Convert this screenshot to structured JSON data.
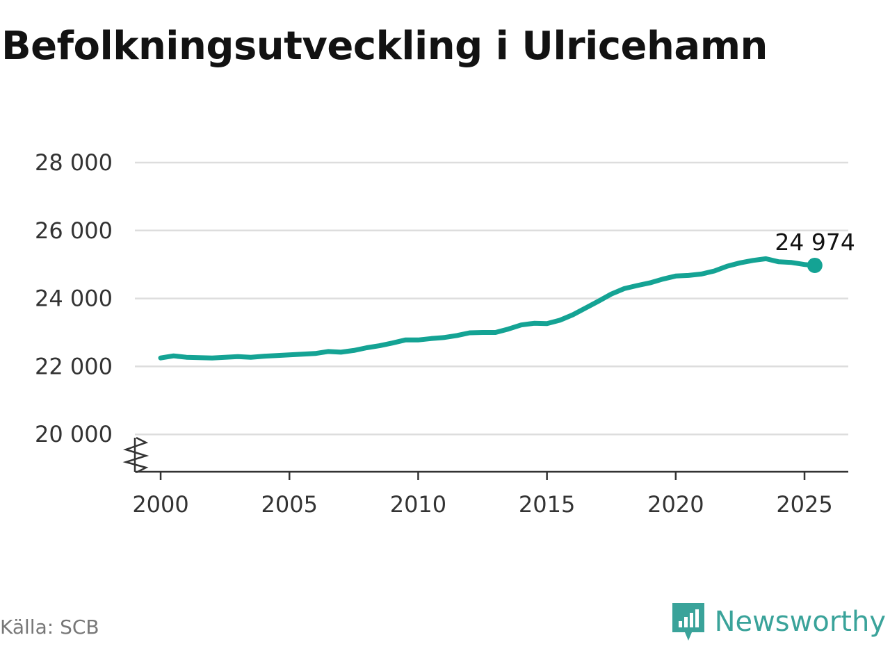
{
  "title": "Befolkningsutveckling i Ulricehamn",
  "source": "Källa: SCB",
  "brand": {
    "name": "Newsworthy",
    "icon": "newsworthy-logo-icon",
    "color": "#3aa39a"
  },
  "chart_data": {
    "type": "line",
    "title": "Befolkningsutveckling i Ulricehamn",
    "xlabel": "",
    "ylabel": "",
    "xlim": [
      1999,
      2026.7
    ],
    "ylim": [
      18900,
      28000
    ],
    "y_axis_break": true,
    "grid": true,
    "x_ticks": [
      2000,
      2005,
      2010,
      2015,
      2020,
      2025
    ],
    "y_ticks": [
      20000,
      22000,
      24000,
      26000,
      28000
    ],
    "x_tick_labels": [
      "2000",
      "2005",
      "2010",
      "2015",
      "2020",
      "2025"
    ],
    "y_tick_labels": [
      "20 000",
      "22 000",
      "24 000",
      "26 000",
      "28 000"
    ],
    "line_color": "#14a394",
    "end_label": "24 974",
    "series": [
      {
        "x": [
          2000.0,
          2000.5,
          2001.0,
          2001.5,
          2002.0,
          2002.5,
          2003.0,
          2003.5,
          2004.0,
          2004.5,
          2005.0,
          2005.5,
          2006.0,
          2006.5,
          2007.0,
          2007.5,
          2008.0,
          2008.5,
          2009.0,
          2009.5,
          2010.0,
          2010.5,
          2011.0,
          2011.5,
          2012.0,
          2012.5,
          2013.0,
          2013.5,
          2014.0,
          2014.5,
          2015.0,
          2015.5,
          2016.0,
          2016.5,
          2017.0,
          2017.5,
          2018.0,
          2018.5,
          2019.0,
          2019.5,
          2020.0,
          2020.5,
          2021.0,
          2021.5,
          2022.0,
          2022.5,
          2023.0,
          2023.5,
          2024.0,
          2024.5,
          2025.0,
          2025.4
        ],
        "y": [
          22250,
          22310,
          22270,
          22260,
          22250,
          22270,
          22290,
          22270,
          22300,
          22320,
          22340,
          22360,
          22380,
          22440,
          22420,
          22470,
          22550,
          22610,
          22690,
          22780,
          22780,
          22820,
          22850,
          22910,
          22990,
          23000,
          23000,
          23100,
          23220,
          23270,
          23260,
          23360,
          23520,
          23720,
          23920,
          24130,
          24290,
          24380,
          24460,
          24570,
          24660,
          24680,
          24720,
          24810,
          24950,
          25050,
          25120,
          25170,
          25080,
          25060,
          25000,
          24974
        ]
      }
    ]
  }
}
